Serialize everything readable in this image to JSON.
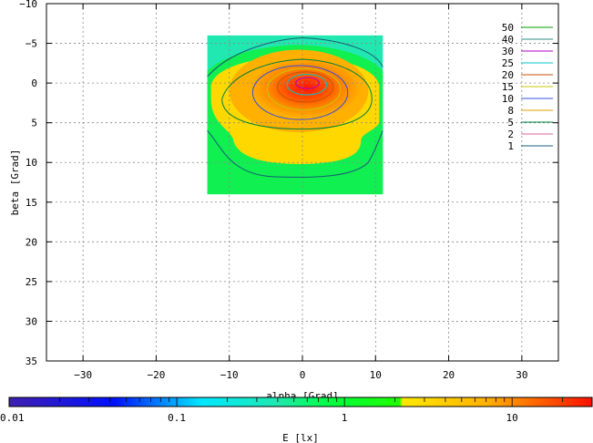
{
  "chart_data": {
    "type": "heatmap",
    "title": "",
    "xlabel": "alpha [Grad]",
    "ylabel": "beta [Grad]",
    "xlim": [
      -35,
      35
    ],
    "ylim": [
      -10,
      35
    ],
    "y_axis_inverted": true,
    "x_ticks": [
      -30,
      -20,
      -10,
      0,
      10,
      20,
      30
    ],
    "y_ticks": [
      -10,
      -5,
      0,
      5,
      10,
      15,
      20,
      25,
      30,
      35
    ],
    "x_tick_labels": [
      "−30",
      "−20",
      "−10",
      "0",
      "10",
      "20",
      "30"
    ],
    "y_tick_labels": [
      "−10",
      "−5",
      "0",
      "5",
      "10",
      "15",
      "20",
      "25",
      "30",
      "35"
    ],
    "grid": true,
    "data_extent": {
      "alpha": [
        -13,
        11
      ],
      "beta": [
        -6,
        14
      ]
    },
    "contour_levels": [
      {
        "value": 50,
        "label": "50",
        "color": "#00a000"
      },
      {
        "value": 40,
        "label": "40",
        "color": "#2e8b8b"
      },
      {
        "value": 30,
        "label": "30",
        "color": "#b000c8"
      },
      {
        "value": 25,
        "label": "25",
        "color": "#00c8c8"
      },
      {
        "value": 20,
        "label": "20",
        "color": "#c85000"
      },
      {
        "value": 15,
        "label": "15",
        "color": "#c8c800"
      },
      {
        "value": 10,
        "label": "10",
        "color": "#3050e0"
      },
      {
        "value": 8,
        "label": "8",
        "color": "#e0a000"
      },
      {
        "value": 5,
        "label": "5",
        "color": "#008040"
      },
      {
        "value": 2,
        "label": "2",
        "color": "#e060a0"
      },
      {
        "value": 1,
        "label": "1",
        "color": "#1a5a78"
      }
    ],
    "legend_placement": "top-right",
    "colorbar": {
      "label": "E [lx]",
      "scale": "log",
      "range": [
        0.01,
        30
      ],
      "tick_labels": [
        {
          "value": 0.01,
          "label": "0.01"
        },
        {
          "value": 0.1,
          "label": "0.1"
        },
        {
          "value": 1,
          "label": "1"
        },
        {
          "value": 10,
          "label": "10"
        }
      ]
    }
  }
}
